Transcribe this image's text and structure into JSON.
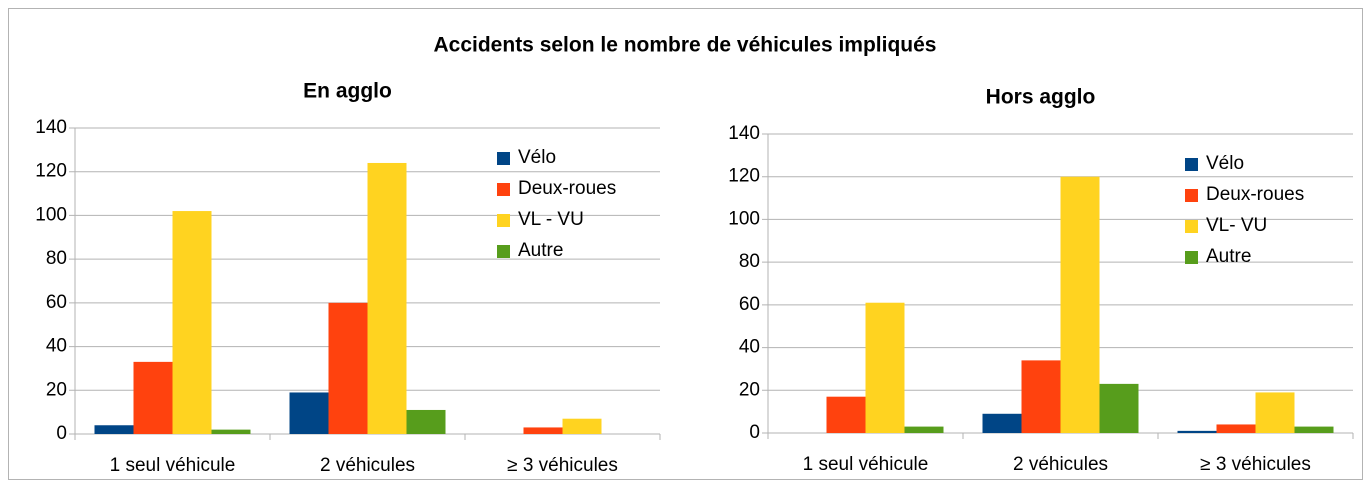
{
  "title": "Accidents selon le nombre de véhicules impliqués",
  "chart_data": [
    {
      "type": "bar",
      "title": "En agglo",
      "categories": [
        "1 seul véhicule",
        "2 véhicules",
        "≥ 3 véhicules"
      ],
      "series": [
        {
          "name": "Vélo",
          "color": "#004586",
          "values": [
            4,
            19,
            0
          ]
        },
        {
          "name": "Deux-roues",
          "color": "#ff420e",
          "values": [
            33,
            60,
            3
          ]
        },
        {
          "name": "VL - VU",
          "color": "#ffd320",
          "values": [
            102,
            124,
            7
          ]
        },
        {
          "name": "Autre",
          "color": "#579d1c",
          "values": [
            2,
            11,
            0
          ]
        }
      ],
      "ylim": [
        0,
        140
      ],
      "yticks": [
        0,
        20,
        40,
        60,
        80,
        100,
        120,
        140
      ],
      "grid": true,
      "legend": "top-right"
    },
    {
      "type": "bar",
      "title": "Hors agglo",
      "categories": [
        "1 seul véhicule",
        "2 véhicules",
        "≥ 3 véhicules"
      ],
      "series": [
        {
          "name": "Vélo",
          "color": "#004586",
          "values": [
            0,
            9,
            1
          ]
        },
        {
          "name": "Deux-roues",
          "color": "#ff420e",
          "values": [
            17,
            34,
            4
          ]
        },
        {
          "name": "VL- VU",
          "color": "#ffd320",
          "values": [
            61,
            120,
            19
          ]
        },
        {
          "name": "Autre",
          "color": "#579d1c",
          "values": [
            3,
            23,
            3
          ]
        }
      ],
      "ylim": [
        0,
        140
      ],
      "yticks": [
        0,
        20,
        40,
        60,
        80,
        100,
        120,
        140
      ],
      "grid": true,
      "legend": "top-right"
    }
  ]
}
